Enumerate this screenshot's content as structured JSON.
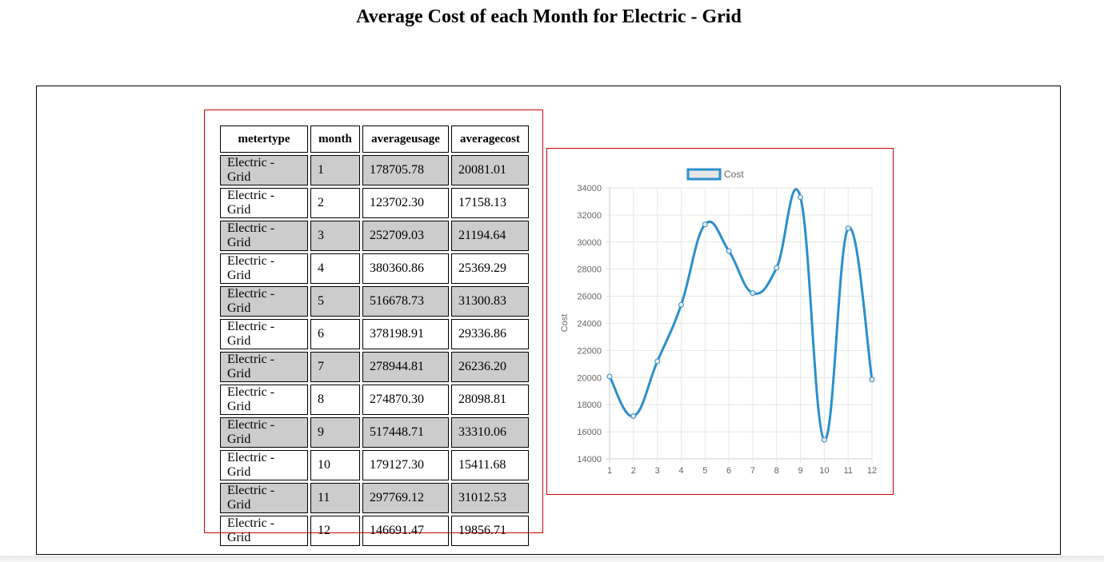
{
  "page": {
    "title": "Average Cost of each Month for Electric - Grid"
  },
  "table": {
    "headers": [
      "metertype",
      "month",
      "averageusage",
      "averagecost"
    ],
    "rows": [
      [
        "Electric - Grid",
        "1",
        "178705.78",
        "20081.01"
      ],
      [
        "Electric - Grid",
        "2",
        "123702.30",
        "17158.13"
      ],
      [
        "Electric - Grid",
        "3",
        "252709.03",
        "21194.64"
      ],
      [
        "Electric - Grid",
        "4",
        "380360.86",
        "25369.29"
      ],
      [
        "Electric - Grid",
        "5",
        "516678.73",
        "31300.83"
      ],
      [
        "Electric - Grid",
        "6",
        "378198.91",
        "29336.86"
      ],
      [
        "Electric - Grid",
        "7",
        "278944.81",
        "26236.20"
      ],
      [
        "Electric - Grid",
        "8",
        "274870.30",
        "28098.81"
      ],
      [
        "Electric - Grid",
        "9",
        "517448.71",
        "33310.06"
      ],
      [
        "Electric - Grid",
        "10",
        "179127.30",
        "15411.68"
      ],
      [
        "Electric - Grid",
        "11",
        "297769.12",
        "31012.53"
      ],
      [
        "Electric - Grid",
        "12",
        "146691.47",
        "19856.71"
      ]
    ]
  },
  "chart_data": {
    "type": "line",
    "title": "",
    "xlabel": "",
    "ylabel": "Cost",
    "x": [
      1,
      2,
      3,
      4,
      5,
      6,
      7,
      8,
      9,
      10,
      11,
      12
    ],
    "series": [
      {
        "name": "Cost",
        "values": [
          20081.01,
          17158.13,
          21194.64,
          25369.29,
          31300.83,
          29336.86,
          26236.2,
          28098.81,
          33310.06,
          15411.68,
          31012.53,
          19856.71
        ]
      }
    ],
    "ylim": [
      14000,
      34000
    ],
    "yticks": [
      14000,
      16000,
      18000,
      20000,
      22000,
      24000,
      26000,
      28000,
      30000,
      32000,
      34000
    ],
    "grid": true,
    "legend": "top",
    "line_color": "#2b8fcc",
    "legend_fill": "#e6e6e6"
  }
}
